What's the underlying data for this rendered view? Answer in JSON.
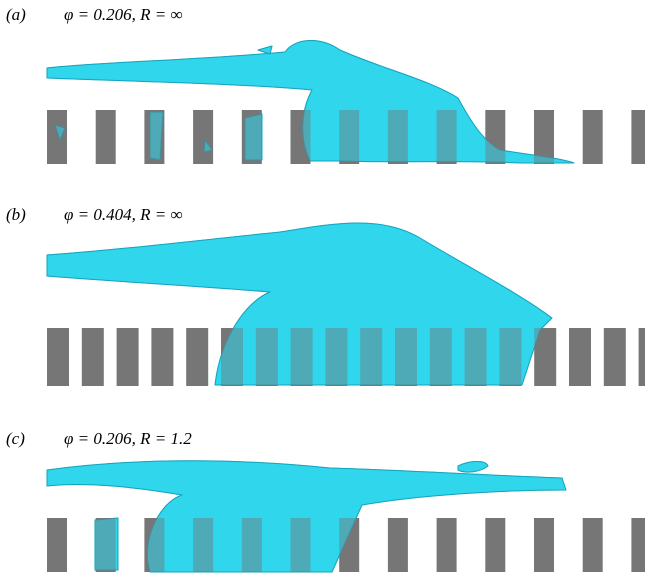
{
  "panels": [
    {
      "label": "(a)",
      "caption": "φ = 0.206, R = ∞"
    },
    {
      "label": "(b)",
      "caption": "φ = 0.404, R = ∞"
    },
    {
      "label": "(c)",
      "caption": "φ = 0.206, R = 1.2"
    }
  ]
}
